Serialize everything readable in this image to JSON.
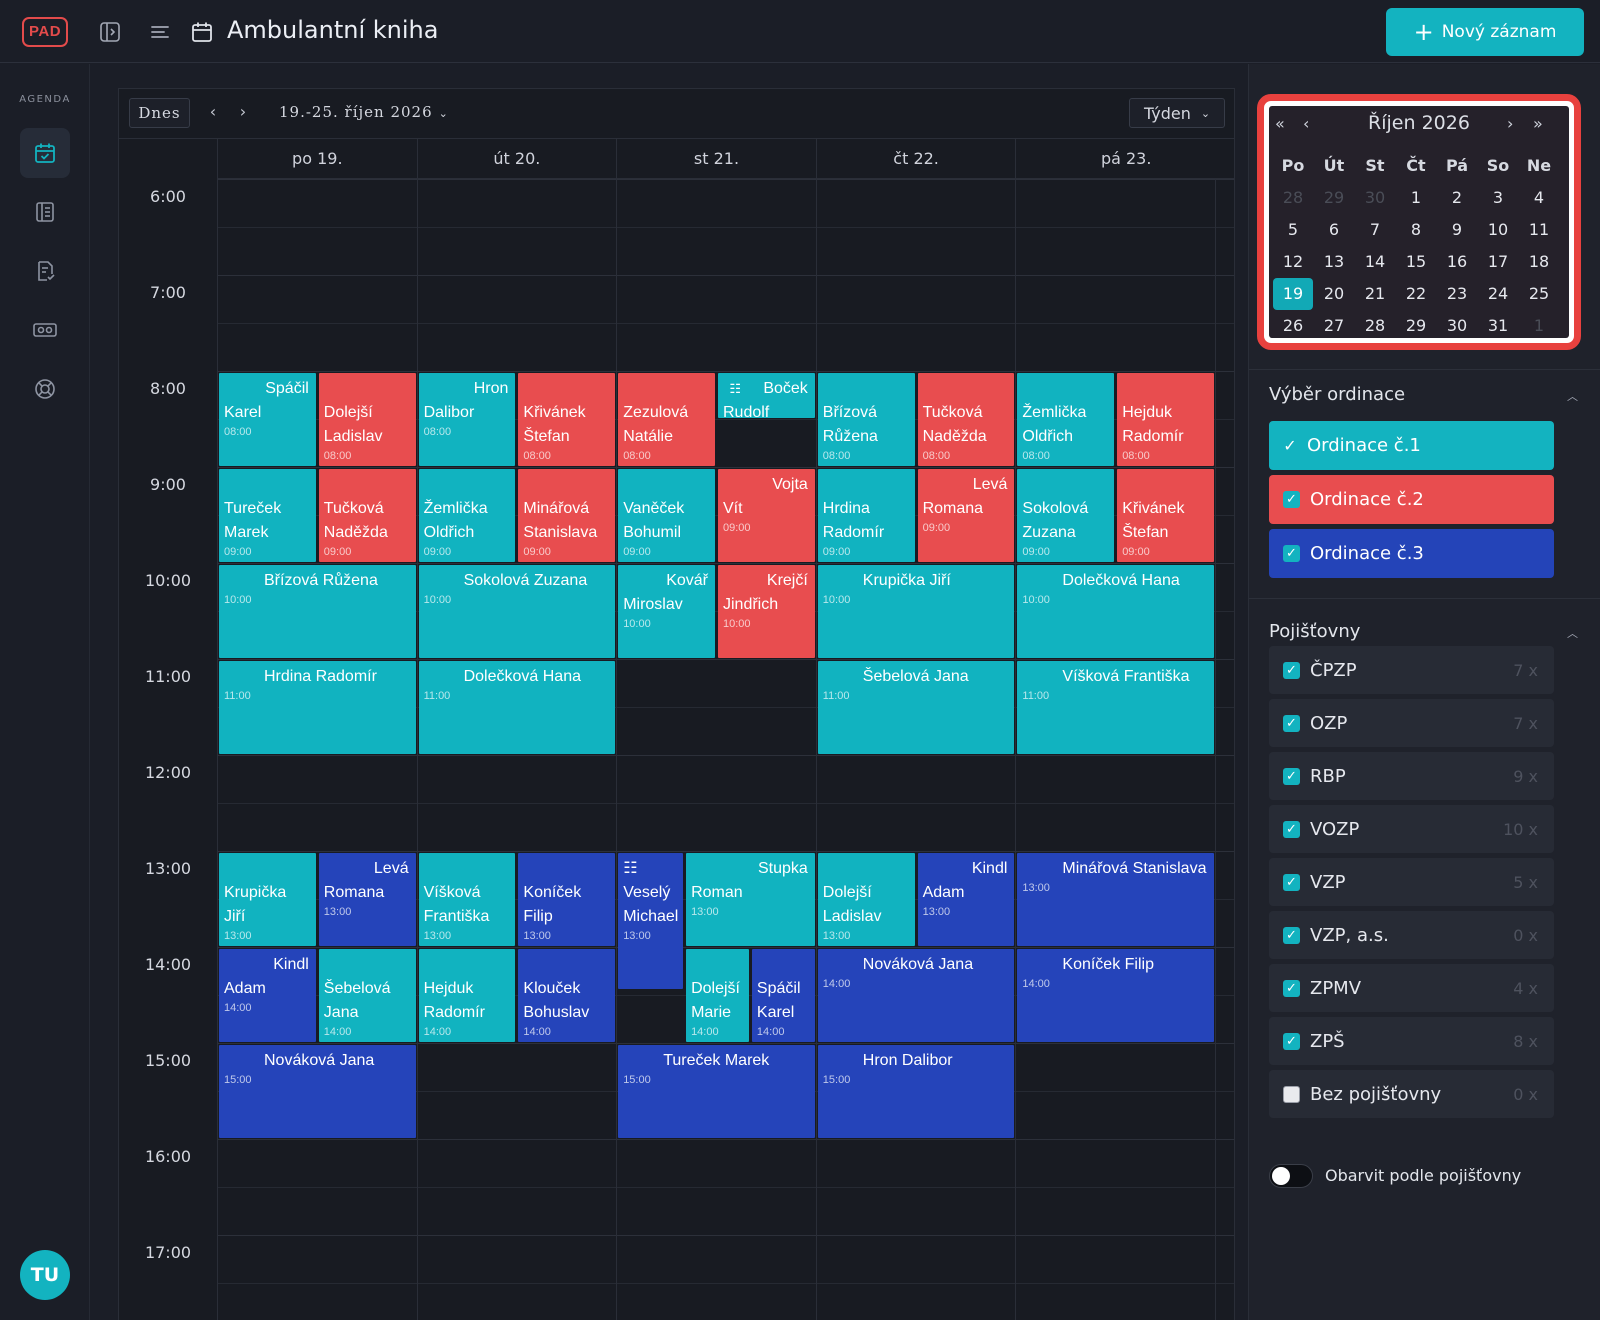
{
  "topbar": {
    "logo": "PAD",
    "title": "Ambulantní kniha",
    "new_button": "Nový záznam"
  },
  "rail": {
    "section_label": "AGENDA",
    "icons": [
      "calendar-check-icon",
      "list-icon",
      "document-check-icon",
      "id-card-icon",
      "lifebuoy-icon"
    ],
    "avatar": "TU"
  },
  "calendar": {
    "today_button": "Dnes",
    "range_label": "19.-25. říjen 2026",
    "view_select": "Týden",
    "days": [
      "po 19.",
      "út 20.",
      "st 21.",
      "čt 22.",
      "pá 23."
    ],
    "hours": [
      "6:00",
      "7:00",
      "8:00",
      "9:00",
      "10:00",
      "11:00",
      "12:00",
      "13:00",
      "14:00",
      "15:00",
      "16:00",
      "17:00"
    ],
    "events": [
      {
        "day": 0,
        "sub": 0,
        "span": 1,
        "start": 8,
        "dur": 1,
        "cls": "c1",
        "l1": "Spáčil",
        "l2": "Karel",
        "time": "08:00",
        "right": true
      },
      {
        "day": 0,
        "sub": 1,
        "span": 1,
        "start": 8,
        "dur": 1,
        "cls": "c2",
        "l1": "Dolejší",
        "l2": "Ladislav",
        "time": "08:00",
        "top": true
      },
      {
        "day": 1,
        "sub": 0,
        "span": 1,
        "start": 8,
        "dur": 1,
        "cls": "c1",
        "l1": "Hron",
        "l2": "Dalibor",
        "time": "08:00",
        "right": true
      },
      {
        "day": 1,
        "sub": 1,
        "span": 1,
        "start": 8,
        "dur": 1,
        "cls": "c2",
        "l1": "Křivánek",
        "l2": "Štefan",
        "time": "08:00",
        "top": true
      },
      {
        "day": 2,
        "sub": 0,
        "span": 1,
        "start": 8,
        "dur": 1,
        "cls": "c2",
        "l1": "Zezulová",
        "l2": "Natálie",
        "time": "08:00",
        "top": true
      },
      {
        "day": 2,
        "sub": 1,
        "span": 1,
        "start": 8,
        "dur": 0.5,
        "cls": "c1",
        "l1": "Boček",
        "l2": "Rudolf",
        "time": "",
        "right": true,
        "icon": "☷"
      },
      {
        "day": 3,
        "sub": 0,
        "span": 1,
        "start": 8,
        "dur": 1,
        "cls": "c1",
        "l1": "Břízová",
        "l2": "Růžena",
        "time": "08:00",
        "top": true
      },
      {
        "day": 3,
        "sub": 1,
        "span": 1,
        "start": 8,
        "dur": 1,
        "cls": "c2",
        "l1": "Tučková",
        "l2": "Naděžda",
        "time": "08:00",
        "top": true
      },
      {
        "day": 4,
        "sub": 0,
        "span": 1,
        "start": 8,
        "dur": 1,
        "cls": "c1",
        "l1": "Žemlička",
        "l2": "Oldřich",
        "time": "08:00",
        "top": true
      },
      {
        "day": 4,
        "sub": 1,
        "span": 1,
        "start": 8,
        "dur": 1,
        "cls": "c2",
        "l1": "Hejduk",
        "l2": "Radomír",
        "time": "08:00",
        "top": true
      },
      {
        "day": 0,
        "sub": 0,
        "span": 1,
        "start": 9,
        "dur": 1,
        "cls": "c1",
        "l1": "Tureček",
        "l2": "Marek",
        "time": "09:00",
        "top": true
      },
      {
        "day": 0,
        "sub": 1,
        "span": 1,
        "start": 9,
        "dur": 1,
        "cls": "c2",
        "l1": "Tučková",
        "l2": "Naděžda",
        "time": "09:00",
        "top": true
      },
      {
        "day": 1,
        "sub": 0,
        "span": 1,
        "start": 9,
        "dur": 1,
        "cls": "c1",
        "l1": "Žemlička",
        "l2": "Oldřich",
        "time": "09:00",
        "top": true
      },
      {
        "day": 1,
        "sub": 1,
        "span": 1,
        "start": 9,
        "dur": 1,
        "cls": "c2",
        "l1": "Minářová",
        "l2": "Stanislava",
        "time": "09:00",
        "top": true
      },
      {
        "day": 2,
        "sub": 0,
        "span": 1,
        "start": 9,
        "dur": 1,
        "cls": "c1",
        "l1": "Vaněček",
        "l2": "Bohumil",
        "time": "09:00",
        "top": true
      },
      {
        "day": 2,
        "sub": 1,
        "span": 1,
        "start": 9,
        "dur": 1,
        "cls": "c2",
        "l1": "Vojta",
        "l2": "Vít",
        "time": "09:00",
        "right": true
      },
      {
        "day": 3,
        "sub": 0,
        "span": 1,
        "start": 9,
        "dur": 1,
        "cls": "c1",
        "l1": "Hrdina",
        "l2": "Radomír",
        "time": "09:00",
        "top": true
      },
      {
        "day": 3,
        "sub": 1,
        "span": 1,
        "start": 9,
        "dur": 1,
        "cls": "c2",
        "l1": "Levá",
        "l2": "Romana",
        "time": "09:00",
        "right": true
      },
      {
        "day": 4,
        "sub": 0,
        "span": 1,
        "start": 9,
        "dur": 1,
        "cls": "c1",
        "l1": "Sokolová",
        "l2": "Zuzana",
        "time": "09:00",
        "top": true
      },
      {
        "day": 4,
        "sub": 1,
        "span": 1,
        "start": 9,
        "dur": 1,
        "cls": "c2",
        "l1": "Křivánek",
        "l2": "Štefan",
        "time": "09:00",
        "top": true
      },
      {
        "day": 0,
        "sub": 0,
        "span": 2,
        "start": 10,
        "dur": 1,
        "cls": "c1",
        "l1": "Břízová Růžena",
        "time": "10:00",
        "wide": true
      },
      {
        "day": 1,
        "sub": 0,
        "span": 2,
        "start": 10,
        "dur": 1,
        "cls": "c1",
        "l1": "Sokolová Zuzana",
        "time": "10:00",
        "wide": true
      },
      {
        "day": 2,
        "sub": 0,
        "span": 1,
        "start": 10,
        "dur": 1,
        "cls": "c1",
        "l1": "Kovář",
        "l2": "Miroslav",
        "time": "10:00",
        "right": true
      },
      {
        "day": 2,
        "sub": 1,
        "span": 1,
        "start": 10,
        "dur": 1,
        "cls": "c2",
        "l1": "Krejčí",
        "l2": "Jindřich",
        "time": "10:00",
        "right": true
      },
      {
        "day": 3,
        "sub": 0,
        "span": 2,
        "start": 10,
        "dur": 1,
        "cls": "c1",
        "l1": "Krupička Jiří",
        "time": "10:00",
        "wide": true
      },
      {
        "day": 4,
        "sub": 0,
        "span": 2,
        "start": 10,
        "dur": 1,
        "cls": "c1",
        "l1": "Dolečková Hana",
        "time": "10:00",
        "wide": true
      },
      {
        "day": 0,
        "sub": 0,
        "span": 2,
        "start": 11,
        "dur": 1,
        "cls": "c1",
        "l1": "Hrdina Radomír",
        "time": "11:00",
        "wide": true
      },
      {
        "day": 1,
        "sub": 0,
        "span": 2,
        "start": 11,
        "dur": 1,
        "cls": "c1",
        "l1": "Dolečková Hana",
        "time": "11:00",
        "wide": true
      },
      {
        "day": 3,
        "sub": 0,
        "span": 2,
        "start": 11,
        "dur": 1,
        "cls": "c1",
        "l1": "Šebelová Jana",
        "time": "11:00",
        "wide": true
      },
      {
        "day": 4,
        "sub": 0,
        "span": 2,
        "start": 11,
        "dur": 1,
        "cls": "c1",
        "l1": "Víšková Františka",
        "time": "11:00",
        "wide": true
      },
      {
        "day": 0,
        "sub": 0,
        "span": 1,
        "start": 13,
        "dur": 1,
        "cls": "c1",
        "l1": "Krupička",
        "l2": "Jiří",
        "time": "13:00",
        "top": true
      },
      {
        "day": 0,
        "sub": 1,
        "span": 1,
        "start": 13,
        "dur": 1,
        "cls": "c3",
        "l1": "Levá",
        "l2": "Romana",
        "time": "13:00",
        "right": true
      },
      {
        "day": 1,
        "sub": 0,
        "span": 1,
        "start": 13,
        "dur": 1,
        "cls": "c1",
        "l1": "Víšková",
        "l2": "Františka",
        "time": "13:00",
        "top": true
      },
      {
        "day": 1,
        "sub": 1,
        "span": 1,
        "start": 13,
        "dur": 1,
        "cls": "c3",
        "l1": "Koníček",
        "l2": "Filip",
        "time": "13:00",
        "top": true
      },
      {
        "day": 2,
        "custom": [
          0,
          0.34
        ],
        "start": 13,
        "dur": 1.45,
        "cls": "c3",
        "l1": "Veselý",
        "l2": "Michael",
        "time": "13:00",
        "icon": "☷",
        "stack": true
      },
      {
        "day": 2,
        "custom": [
          0.34,
          1
        ],
        "start": 13,
        "dur": 1,
        "cls": "c1",
        "l1": "Stupka",
        "l2": "Roman",
        "time": "13:00",
        "right": true
      },
      {
        "day": 3,
        "sub": 0,
        "span": 1,
        "start": 13,
        "dur": 1,
        "cls": "c1",
        "l1": "Dolejší",
        "l2": "Ladislav",
        "time": "13:00",
        "top": true
      },
      {
        "day": 3,
        "sub": 1,
        "span": 1,
        "start": 13,
        "dur": 1,
        "cls": "c3",
        "l1": "Kindl",
        "l2": "Adam",
        "time": "13:00",
        "right": true
      },
      {
        "day": 4,
        "sub": 0,
        "span": 2,
        "start": 13,
        "dur": 1,
        "cls": "c3",
        "l1": "Minářová Stanislava",
        "time": "13:00",
        "wide": true
      },
      {
        "day": 0,
        "sub": 0,
        "span": 1,
        "start": 14,
        "dur": 1,
        "cls": "c3",
        "l1": "Kindl",
        "l2": "Adam",
        "time": "14:00",
        "right": true
      },
      {
        "day": 0,
        "sub": 1,
        "span": 1,
        "start": 14,
        "dur": 1,
        "cls": "c1",
        "l1": "Šebelová",
        "l2": "Jana",
        "time": "14:00",
        "top": true
      },
      {
        "day": 1,
        "sub": 0,
        "span": 1,
        "start": 14,
        "dur": 1,
        "cls": "c1",
        "l1": "Hejduk",
        "l2": "Radomír",
        "time": "14:00",
        "top": true
      },
      {
        "day": 1,
        "sub": 1,
        "span": 1,
        "start": 14,
        "dur": 1,
        "cls": "c3",
        "l1": "Klouček",
        "l2": "Bohuslav",
        "time": "14:00",
        "top": true
      },
      {
        "day": 2,
        "custom": [
          0.34,
          0.67
        ],
        "start": 14,
        "dur": 1,
        "cls": "c1",
        "l1": "Dolejší",
        "l2": "Marie",
        "time": "14:00",
        "top": true
      },
      {
        "day": 2,
        "custom": [
          0.67,
          1
        ],
        "start": 14,
        "dur": 1,
        "cls": "c3",
        "l1": "Spáčil",
        "l2": "Karel",
        "time": "14:00",
        "top": true
      },
      {
        "day": 3,
        "sub": 0,
        "span": 2,
        "start": 14,
        "dur": 1,
        "cls": "c3",
        "l1": "Nováková Jana",
        "time": "14:00",
        "wide": true
      },
      {
        "day": 4,
        "sub": 0,
        "span": 2,
        "start": 14,
        "dur": 1,
        "cls": "c3",
        "l1": "Koníček Filip",
        "time": "14:00",
        "wide": true
      },
      {
        "day": 0,
        "sub": 0,
        "span": 2,
        "start": 15,
        "dur": 1,
        "cls": "c3",
        "l1": "Nováková Jana",
        "time": "15:00",
        "wide": true
      },
      {
        "day": 2,
        "sub": 0,
        "span": 2,
        "start": 15,
        "dur": 1,
        "cls": "c3",
        "l1": "Tureček Marek",
        "time": "15:00",
        "wide": true
      },
      {
        "day": 3,
        "sub": 0,
        "span": 2,
        "start": 15,
        "dur": 1,
        "cls": "c3",
        "l1": "Hron Dalibor",
        "time": "15:00",
        "wide": true
      }
    ]
  },
  "mini_calendar": {
    "title": "Říjen 2026",
    "nav": {
      "prev_year": "«",
      "prev": "‹",
      "next": "›",
      "next_year": "»"
    },
    "dow": [
      "Po",
      "Út",
      "St",
      "Čt",
      "Pá",
      "So",
      "Ne"
    ],
    "cells": [
      {
        "d": "28",
        "m": true
      },
      {
        "d": "29",
        "m": true
      },
      {
        "d": "30",
        "m": true
      },
      {
        "d": "1"
      },
      {
        "d": "2"
      },
      {
        "d": "3"
      },
      {
        "d": "4"
      },
      {
        "d": "5"
      },
      {
        "d": "6"
      },
      {
        "d": "7"
      },
      {
        "d": "8"
      },
      {
        "d": "9"
      },
      {
        "d": "10"
      },
      {
        "d": "11"
      },
      {
        "d": "12"
      },
      {
        "d": "13"
      },
      {
        "d": "14"
      },
      {
        "d": "15"
      },
      {
        "d": "16"
      },
      {
        "d": "17"
      },
      {
        "d": "18"
      },
      {
        "d": "19",
        "t": true
      },
      {
        "d": "20"
      },
      {
        "d": "21"
      },
      {
        "d": "22"
      },
      {
        "d": "23"
      },
      {
        "d": "24"
      },
      {
        "d": "25"
      },
      {
        "d": "26"
      },
      {
        "d": "27"
      },
      {
        "d": "28"
      },
      {
        "d": "29"
      },
      {
        "d": "30"
      },
      {
        "d": "31"
      },
      {
        "d": "1",
        "m": true
      }
    ]
  },
  "ordinace": {
    "title": "Výběr ordinace",
    "items": [
      "Ordinace č.1",
      "Ordinace č.2",
      "Ordinace č.3"
    ]
  },
  "pojistovny": {
    "title": "Pojišťovny",
    "items": [
      {
        "name": "ČPZP",
        "count": "7 x",
        "checked": true
      },
      {
        "name": "OZP",
        "count": "7 x",
        "checked": true
      },
      {
        "name": "RBP",
        "count": "9 x",
        "checked": true
      },
      {
        "name": "VOZP",
        "count": "10 x",
        "checked": true
      },
      {
        "name": "VZP",
        "count": "5 x",
        "checked": true
      },
      {
        "name": "VZP, a.s.",
        "count": "0 x",
        "checked": true
      },
      {
        "name": "ZPMV",
        "count": "4 x",
        "checked": true
      },
      {
        "name": "ZPŠ",
        "count": "8 x",
        "checked": true
      },
      {
        "name": "Bez pojišťovny",
        "count": "0 x",
        "checked": false
      }
    ],
    "toggle_label": "Obarvit podle pojišťovny"
  },
  "colors": {
    "teal": "#13b3c0",
    "red": "#e84d4f",
    "blue": "#2444b8",
    "highlight": "#e8413e"
  }
}
